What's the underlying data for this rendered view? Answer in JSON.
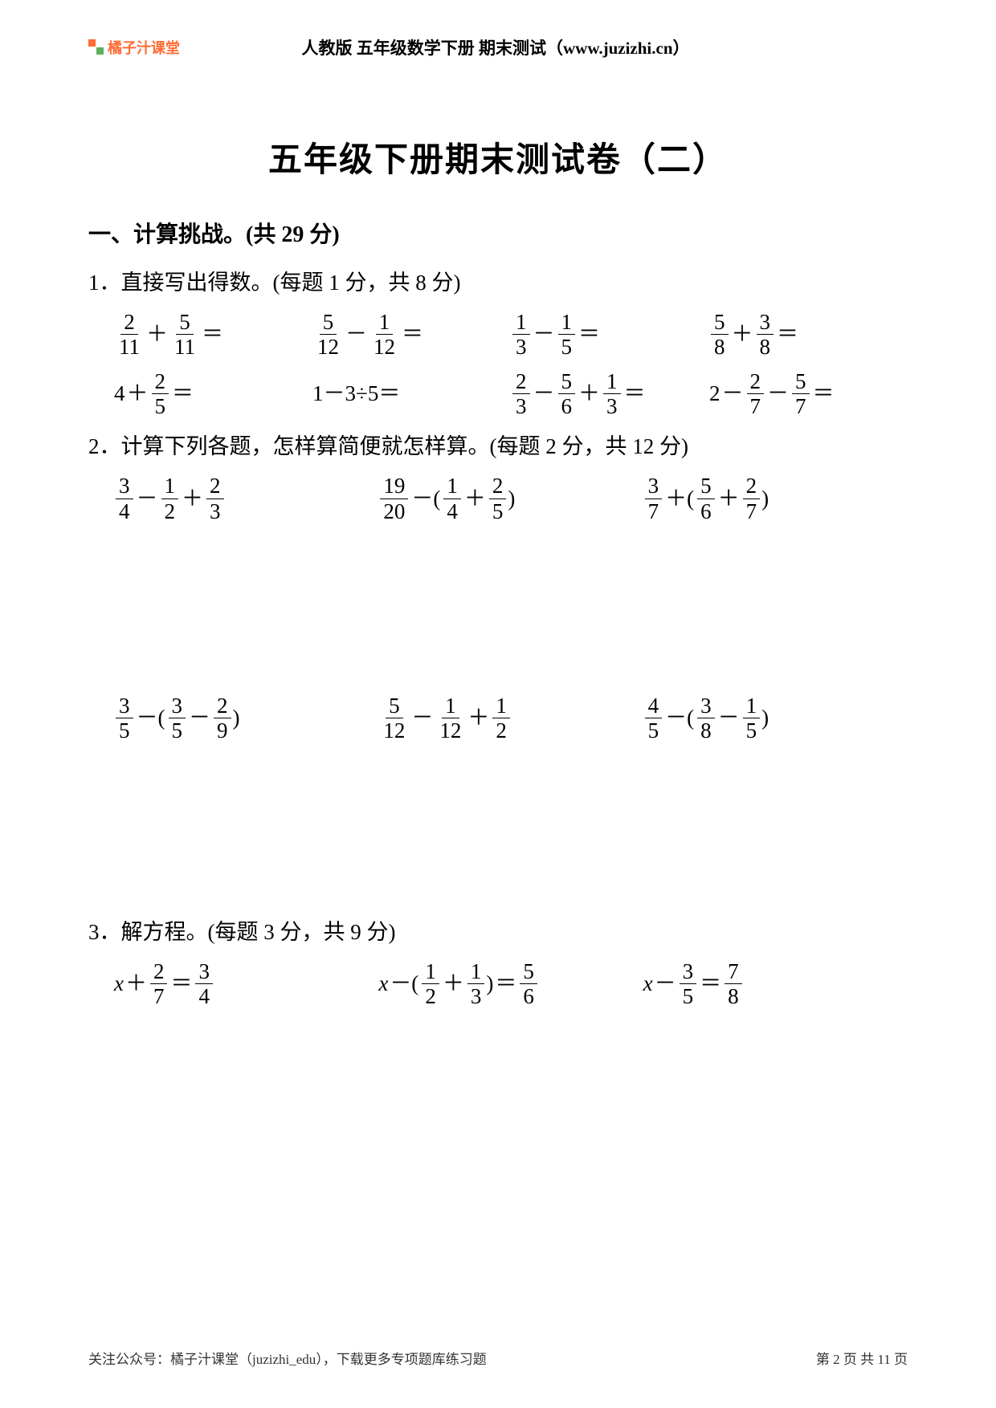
{
  "header": {
    "logo_text": "橘子汁课堂",
    "title": "人教版 五年级数学下册 期末测试（www.juzizhi.cn）"
  },
  "main_title": "五年级下册期末测试卷（二）",
  "section1": {
    "title": "一、计算挑战。(共 29 分)",
    "q1": {
      "title": "1．直接写出得数。(每题 1 分，共 8 分)",
      "row1": {
        "e1": {
          "a_n": "2",
          "a_d": "11",
          "op": "＋",
          "b_n": "5",
          "b_d": "11"
        },
        "e2": {
          "a_n": "5",
          "a_d": "12",
          "op": "－",
          "b_n": "1",
          "b_d": "12"
        },
        "e3": {
          "a_n": "1",
          "a_d": "3",
          "op": "－",
          "b_n": "1",
          "b_d": "5"
        },
        "e4": {
          "a_n": "5",
          "a_d": "8",
          "op": "＋",
          "b_n": "3",
          "b_d": "8"
        }
      },
      "row2": {
        "e1": {
          "w": "4",
          "op": "＋",
          "b_n": "2",
          "b_d": "5"
        },
        "e2": {
          "text": "1－3÷5＝"
        },
        "e3": {
          "a_n": "2",
          "a_d": "3",
          "op1": "－",
          "b_n": "5",
          "b_d": "6",
          "op2": "＋",
          "c_n": "1",
          "c_d": "3"
        },
        "e4": {
          "w": "2",
          "op1": "－",
          "b_n": "2",
          "b_d": "7",
          "op2": "－",
          "c_n": "5",
          "c_d": "7"
        }
      }
    },
    "q2": {
      "title": "2．计算下列各题，怎样算简便就怎样算。(每题 2 分，共 12 分)",
      "row1": {
        "e1": {
          "a_n": "3",
          "a_d": "4",
          "op1": "－",
          "b_n": "1",
          "b_d": "2",
          "op2": "＋",
          "c_n": "2",
          "c_d": "3"
        },
        "e2": {
          "a_n": "19",
          "a_d": "20",
          "op1": "－(",
          "b_n": "1",
          "b_d": "4",
          "op2": "＋",
          "c_n": "2",
          "c_d": "5",
          "close": ")"
        },
        "e3": {
          "a_n": "3",
          "a_d": "7",
          "op1": "＋(",
          "b_n": "5",
          "b_d": "6",
          "op2": "＋",
          "c_n": "2",
          "c_d": "7",
          "close": ")"
        }
      },
      "row2": {
        "e1": {
          "a_n": "3",
          "a_d": "5",
          "op1": "－(",
          "b_n": "3",
          "b_d": "5",
          "op2": "－",
          "c_n": "2",
          "c_d": "9",
          "close": ")"
        },
        "e2": {
          "a_n": "5",
          "a_d": "12",
          "op1": "－",
          "b_n": "1",
          "b_d": "12",
          "op2": "＋",
          "c_n": "1",
          "c_d": "2"
        },
        "e3": {
          "a_n": "4",
          "a_d": "5",
          "op1": "－(",
          "b_n": "3",
          "b_d": "8",
          "op2": "－",
          "c_n": "1",
          "c_d": "5",
          "close": ")"
        }
      }
    },
    "q3": {
      "title": "3．解方程。(每题 3 分，共 9 分)",
      "row1": {
        "e1": {
          "x": "x",
          "op": "＋",
          "a_n": "2",
          "a_d": "7",
          "eq": "＝",
          "b_n": "3",
          "b_d": "4"
        },
        "e2": {
          "x": "x",
          "op1": "－(",
          "a_n": "1",
          "a_d": "2",
          "op2": "＋",
          "b_n": "1",
          "b_d": "3",
          "close": ")",
          "eq": "＝",
          "c_n": "5",
          "c_d": "6"
        },
        "e3": {
          "x": "x",
          "op": "－",
          "a_n": "3",
          "a_d": "5",
          "eq": "＝",
          "b_n": "7",
          "b_d": "8"
        }
      }
    }
  },
  "footer": {
    "left": "关注公众号：橘子汁课堂（juzizhi_edu），下载更多专项题库练习题",
    "right": "第 2 页 共 11 页"
  },
  "colors": {
    "text": "#000000",
    "logo": "#ff6b35",
    "background": "#ffffff"
  }
}
